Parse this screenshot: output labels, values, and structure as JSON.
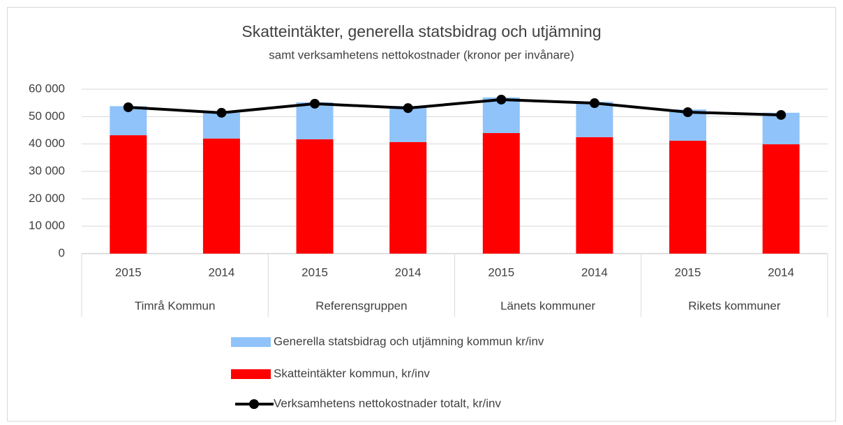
{
  "chart_data": {
    "type": "bar",
    "title": "Skatteintäkter, generella statsbidrag och utjämning",
    "subtitle": "samt verksamhetens nettokostnader (kronor per invånare)",
    "categories": [
      "2015",
      "2014",
      "2015",
      "2014",
      "2015",
      "2014",
      "2015",
      "2014"
    ],
    "category_groups": [
      "Timrå Kommun",
      "Referensgruppen",
      "Länets kommuner",
      "Rikets kommuner"
    ],
    "series": [
      {
        "name": "Generella statsbidrag och utjämning kommun kr/inv",
        "color": "#8fc3f9",
        "type": "bar",
        "values": [
          10600,
          9400,
          13500,
          13200,
          13000,
          12900,
          11400,
          11500
        ]
      },
      {
        "name": "Skatteintäkter kommun, kr/inv",
        "color": "#ff0000",
        "type": "bar",
        "values": [
          43200,
          42000,
          41700,
          40700,
          44000,
          42500,
          41200,
          39900
        ]
      },
      {
        "name": "Verksamhetens nettokostnader totalt, kr/inv",
        "color": "#000000",
        "type": "line",
        "values": [
          53400,
          51400,
          54700,
          53100,
          56200,
          54900,
          51600,
          50600
        ]
      }
    ],
    "ylim": [
      0,
      60000
    ],
    "yticks": [
      0,
      {
        "value": 10000,
        "label": "10 000"
      },
      {
        "value": 20000,
        "label": "20 000"
      },
      {
        "value": 30000,
        "label": "30 000"
      },
      {
        "value": 40000,
        "label": "40 000"
      },
      {
        "value": 50000,
        "label": "50 000"
      },
      {
        "value": 60000,
        "label": "60 000"
      }
    ],
    "grid": true
  }
}
